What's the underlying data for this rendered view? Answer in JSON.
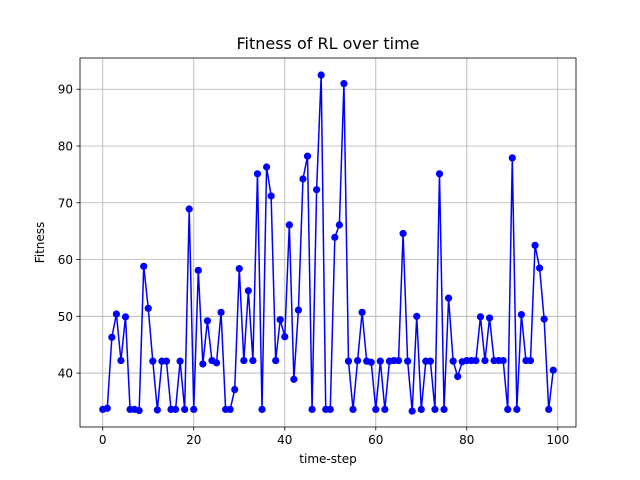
{
  "chart_data": {
    "type": "line",
    "title": "Fitness of RL over time",
    "xlabel": "time-step",
    "ylabel": "Fitness",
    "xlim": [
      -5,
      104
    ],
    "ylim": [
      30.5,
      95.5
    ],
    "xticks": [
      0,
      20,
      40,
      60,
      80,
      100
    ],
    "yticks": [
      40,
      50,
      60,
      70,
      80,
      90
    ],
    "grid": true,
    "marker": "circle",
    "color": "#0000ff",
    "series": [
      {
        "x": [
          0,
          1,
          2,
          3,
          4,
          5,
          6,
          7,
          8,
          9,
          10,
          11,
          12,
          13,
          14,
          15,
          16,
          17,
          18,
          19,
          20,
          21,
          22,
          23,
          24,
          25,
          26,
          27,
          28,
          29,
          30,
          31,
          32,
          33,
          34,
          35,
          36,
          37,
          38,
          39,
          40,
          41,
          42,
          43,
          44,
          45,
          46,
          47,
          48,
          49,
          50,
          51,
          52,
          53,
          54,
          55,
          56,
          57,
          58,
          59,
          60,
          61,
          62,
          63,
          64,
          65,
          66,
          67,
          68,
          69,
          70,
          71,
          72,
          73,
          74,
          75,
          76,
          77,
          78,
          79,
          80,
          81,
          82,
          83,
          84,
          85,
          86,
          87,
          88,
          89,
          90,
          91,
          92,
          93,
          94,
          95,
          96,
          97,
          98,
          99
        ],
        "values": [
          33.6,
          33.8,
          46.3,
          50.4,
          42.2,
          49.9,
          33.6,
          33.6,
          33.4,
          58.8,
          51.4,
          42.1,
          33.5,
          42.1,
          42.1,
          33.6,
          33.6,
          42.1,
          33.6,
          68.9,
          33.6,
          58.1,
          41.6,
          49.2,
          42.2,
          41.8,
          50.7,
          33.6,
          33.6,
          37.1,
          58.4,
          42.2,
          54.5,
          42.2,
          75.1,
          33.6,
          76.3,
          71.2,
          42.2,
          49.4,
          46.4,
          66.1,
          38.9,
          51.1,
          74.2,
          78.2,
          33.6,
          72.3,
          92.5,
          33.6,
          33.6,
          63.9,
          66.1,
          91.0,
          42.1,
          33.6,
          42.2,
          50.7,
          42.1,
          41.9,
          33.6,
          42.1,
          33.6,
          42.1,
          42.2,
          42.2,
          64.6,
          42.1,
          33.3,
          50.0,
          33.6,
          42.1,
          42.1,
          33.6,
          75.1,
          33.6,
          53.2,
          42.1,
          39.4,
          42.0,
          42.2,
          42.2,
          42.2,
          49.9,
          42.2,
          49.7,
          42.2,
          42.2,
          42.2,
          33.6,
          77.9,
          33.6,
          50.3,
          42.2,
          42.2,
          62.5,
          58.5,
          49.5,
          33.6,
          40.5
        ]
      }
    ]
  }
}
